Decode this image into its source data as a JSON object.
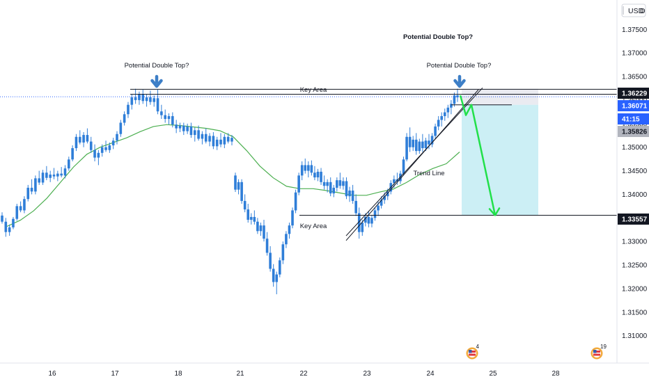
{
  "chart_data": {
    "type": "candlestick",
    "currency": "USD",
    "currency_menu": "D",
    "y_ticks": [
      "1.37500",
      "1.37000",
      "1.36500",
      "1.36000",
      "1.35500",
      "1.35000",
      "1.34500",
      "1.34000",
      "1.33500",
      "1.33000",
      "1.32500",
      "1.32000",
      "1.31500",
      "1.31000"
    ],
    "y_tick_values": [
      1.375,
      1.37,
      1.365,
      1.36,
      1.355,
      1.35,
      1.345,
      1.34,
      1.335,
      1.33,
      1.325,
      1.32,
      1.315,
      1.31
    ],
    "ylim": [
      1.3045,
      1.3805
    ],
    "x_ticks": [
      {
        "label": "16",
        "day": 16
      },
      {
        "label": "17",
        "day": 17
      },
      {
        "label": "18",
        "day": 18
      },
      {
        "label": "21",
        "day": 21
      },
      {
        "label": "22",
        "day": 22
      },
      {
        "label": "23",
        "day": 23
      },
      {
        "label": "24",
        "day": 24
      },
      {
        "label": "25",
        "day": 25
      },
      {
        "label": "28",
        "day": 28
      }
    ],
    "price_tags": [
      {
        "label": "1.36229",
        "value": 1.36229,
        "bg": "#131722",
        "fg": "#ffffff"
      },
      {
        "label": "1.36071",
        "value": 1.36071,
        "bg": "#2962ff",
        "fg": "#ffffff"
      },
      {
        "label": "41:15",
        "value": 1.3588,
        "bg": "#2962ff",
        "fg": "#ffffff"
      },
      {
        "label": "1.35826",
        "value": 1.35826,
        "bg": "#b2b5be",
        "fg": "#131722"
      },
      {
        "label": "1.33557",
        "value": 1.33557,
        "bg": "#131722",
        "fg": "#ffffff"
      }
    ],
    "current_price": 1.36071,
    "key_levels": [
      1.36229,
      1.36125,
      1.33557
    ],
    "annotations": {
      "double_top_left": "Potential Double Top?",
      "double_top_right": "Potential Double Top?",
      "double_top_top": "Potential Double Top?",
      "key_area_upper": "Key Area",
      "key_area_lower": "Key Area",
      "trend_line": "Trend Line"
    },
    "candles_start_day": 15.55,
    "candle_step_days": 0.0417,
    "candles": [
      [
        1.3355,
        1.3362,
        1.3338,
        1.3342
      ],
      [
        1.3342,
        1.335,
        1.331,
        1.332
      ],
      [
        1.332,
        1.3336,
        1.3312,
        1.333
      ],
      [
        1.333,
        1.3352,
        1.3326,
        1.3348
      ],
      [
        1.3348,
        1.338,
        1.3344,
        1.3375
      ],
      [
        1.3375,
        1.3385,
        1.3362,
        1.3366
      ],
      [
        1.3366,
        1.3396,
        1.336,
        1.339
      ],
      [
        1.339,
        1.342,
        1.3385,
        1.3414
      ],
      [
        1.3414,
        1.3432,
        1.34,
        1.3406
      ],
      [
        1.3406,
        1.344,
        1.34,
        1.3434
      ],
      [
        1.3434,
        1.345,
        1.342,
        1.3425
      ],
      [
        1.3425,
        1.3452,
        1.342,
        1.3446
      ],
      [
        1.3446,
        1.346,
        1.343,
        1.3435
      ],
      [
        1.3435,
        1.345,
        1.3426,
        1.3442
      ],
      [
        1.3442,
        1.3456,
        1.3432,
        1.3438
      ],
      [
        1.3438,
        1.345,
        1.3428,
        1.3444
      ],
      [
        1.3444,
        1.3458,
        1.3436,
        1.344
      ],
      [
        1.344,
        1.3462,
        1.3434,
        1.3455
      ],
      [
        1.3455,
        1.348,
        1.345,
        1.3474
      ],
      [
        1.3474,
        1.3504,
        1.347,
        1.3498
      ],
      [
        1.3498,
        1.3528,
        1.3492,
        1.3522
      ],
      [
        1.3522,
        1.3536,
        1.3506,
        1.351
      ],
      [
        1.351,
        1.3532,
        1.35,
        1.3526
      ],
      [
        1.3526,
        1.354,
        1.3508,
        1.3512
      ],
      [
        1.3512,
        1.3522,
        1.3488,
        1.3494
      ],
      [
        1.3494,
        1.3506,
        1.347,
        1.3478
      ],
      [
        1.3478,
        1.3494,
        1.3462,
        1.3488
      ],
      [
        1.3488,
        1.3506,
        1.348,
        1.35
      ],
      [
        1.35,
        1.3514,
        1.349,
        1.3494
      ],
      [
        1.3494,
        1.351,
        1.3488,
        1.3504
      ],
      [
        1.3504,
        1.352,
        1.3496,
        1.3514
      ],
      [
        1.3514,
        1.3534,
        1.3506,
        1.3528
      ],
      [
        1.3528,
        1.3558,
        1.3522,
        1.3552
      ],
      [
        1.3552,
        1.3576,
        1.3546,
        1.357
      ],
      [
        1.357,
        1.3596,
        1.3562,
        1.359
      ],
      [
        1.359,
        1.3612,
        1.358,
        1.3606
      ],
      [
        1.3606,
        1.3624,
        1.3592,
        1.36
      ],
      [
        1.36,
        1.3618,
        1.359,
        1.3612
      ],
      [
        1.3612,
        1.3622,
        1.3592,
        1.3598
      ],
      [
        1.3598,
        1.3612,
        1.3586,
        1.3606
      ],
      [
        1.3606,
        1.362,
        1.359,
        1.3596
      ],
      [
        1.3596,
        1.361,
        1.3586,
        1.3604
      ],
      [
        1.3604,
        1.3622,
        1.357,
        1.3576
      ],
      [
        1.3576,
        1.359,
        1.356,
        1.3568
      ],
      [
        1.3568,
        1.358,
        1.3552,
        1.356
      ],
      [
        1.356,
        1.3572,
        1.3548,
        1.3566
      ],
      [
        1.3566,
        1.3574,
        1.3542,
        1.3548
      ],
      [
        1.3548,
        1.3558,
        1.353,
        1.354
      ],
      [
        1.354,
        1.3552,
        1.3532,
        1.3546
      ],
      [
        1.3546,
        1.3552,
        1.3526,
        1.3534
      ],
      [
        1.3534,
        1.355,
        1.3528,
        1.3544
      ],
      [
        1.3544,
        1.3552,
        1.352,
        1.3526
      ],
      [
        1.3526,
        1.3542,
        1.3512,
        1.3536
      ],
      [
        1.3536,
        1.3546,
        1.3514,
        1.3518
      ],
      [
        1.3518,
        1.3534,
        1.3506,
        1.3528
      ],
      [
        1.3528,
        1.354,
        1.3508,
        1.3512
      ],
      [
        1.3512,
        1.353,
        1.3502,
        1.3524
      ],
      [
        1.3524,
        1.3532,
        1.3496,
        1.3502
      ],
      [
        1.3502,
        1.3522,
        1.3494,
        1.3516
      ],
      [
        1.3516,
        1.353,
        1.35,
        1.3506
      ],
      [
        1.3506,
        1.3528,
        1.3498,
        1.3522
      ],
      [
        1.3522,
        1.353,
        1.3508,
        1.3512
      ],
      [
        1.3512,
        1.3526,
        1.3504,
        1.352
      ],
      [
        1.344,
        1.3446,
        1.3405,
        1.341
      ],
      [
        1.341,
        1.3432,
        1.34,
        1.3426
      ],
      [
        1.3426,
        1.3432,
        1.338,
        1.3386
      ],
      [
        1.3386,
        1.34,
        1.3362,
        1.3368
      ],
      [
        1.3368,
        1.338,
        1.334,
        1.3346
      ],
      [
        1.3346,
        1.336,
        1.3336,
        1.3352
      ],
      [
        1.3352,
        1.3366,
        1.3336,
        1.3342
      ],
      [
        1.3342,
        1.335,
        1.3316,
        1.3322
      ],
      [
        1.3322,
        1.334,
        1.3312,
        1.3334
      ],
      [
        1.3334,
        1.3346,
        1.33,
        1.3306
      ],
      [
        1.3306,
        1.332,
        1.327,
        1.3276
      ],
      [
        1.3276,
        1.329,
        1.3236,
        1.3242
      ],
      [
        1.3242,
        1.3252,
        1.3204,
        1.3214
      ],
      [
        1.3214,
        1.3236,
        1.3188,
        1.323
      ],
      [
        1.323,
        1.3266,
        1.3224,
        1.326
      ],
      [
        1.326,
        1.33,
        1.3252,
        1.3294
      ],
      [
        1.3294,
        1.3322,
        1.3286,
        1.3316
      ],
      [
        1.3316,
        1.334,
        1.3306,
        1.3334
      ],
      [
        1.3334,
        1.3372,
        1.3328,
        1.3366
      ],
      [
        1.3366,
        1.341,
        1.336,
        1.3404
      ],
      [
        1.3404,
        1.3446,
        1.3398,
        1.344
      ],
      [
        1.344,
        1.347,
        1.343,
        1.3462
      ],
      [
        1.3462,
        1.3476,
        1.3444,
        1.345
      ],
      [
        1.345,
        1.347,
        1.3436,
        1.3462
      ],
      [
        1.3462,
        1.3472,
        1.344,
        1.3446
      ],
      [
        1.3446,
        1.346,
        1.343,
        1.3436
      ],
      [
        1.3436,
        1.3454,
        1.3428,
        1.3448
      ],
      [
        1.3448,
        1.3456,
        1.342,
        1.3426
      ],
      [
        1.3426,
        1.344,
        1.341,
        1.3418
      ],
      [
        1.3418,
        1.3432,
        1.3404,
        1.3426
      ],
      [
        1.3426,
        1.3436,
        1.3396,
        1.3402
      ],
      [
        1.3402,
        1.342,
        1.3394,
        1.3414
      ],
      [
        1.3414,
        1.3436,
        1.3406,
        1.343
      ],
      [
        1.343,
        1.3446,
        1.3412,
        1.3418
      ],
      [
        1.3418,
        1.3436,
        1.341,
        1.3428
      ],
      [
        1.3428,
        1.3436,
        1.339,
        1.3396
      ],
      [
        1.3396,
        1.3416,
        1.3384,
        1.3408
      ],
      [
        1.3408,
        1.342,
        1.338,
        1.3386
      ],
      [
        1.3386,
        1.34,
        1.3354,
        1.336
      ],
      [
        1.336,
        1.3372,
        1.3306,
        1.332
      ],
      [
        1.332,
        1.3346,
        1.3312,
        1.334
      ],
      [
        1.334,
        1.336,
        1.3332,
        1.3352
      ],
      [
        1.3352,
        1.3364,
        1.333,
        1.3338
      ],
      [
        1.3338,
        1.3356,
        1.333,
        1.335
      ],
      [
        1.335,
        1.3372,
        1.3344,
        1.3366
      ],
      [
        1.3366,
        1.3384,
        1.3354,
        1.3376
      ],
      [
        1.3376,
        1.3396,
        1.337,
        1.3388
      ],
      [
        1.3388,
        1.3404,
        1.338,
        1.3396
      ],
      [
        1.3396,
        1.3412,
        1.3388,
        1.3406
      ],
      [
        1.3406,
        1.343,
        1.34,
        1.3424
      ],
      [
        1.3424,
        1.344,
        1.3414,
        1.3432
      ],
      [
        1.3432,
        1.3446,
        1.342,
        1.3428
      ],
      [
        1.3428,
        1.345,
        1.3422,
        1.3444
      ],
      [
        1.3444,
        1.348,
        1.344,
        1.3474
      ],
      [
        1.3474,
        1.353,
        1.347,
        1.3522
      ],
      [
        1.3522,
        1.3542,
        1.349,
        1.35
      ],
      [
        1.35,
        1.3524,
        1.3492,
        1.3516
      ],
      [
        1.3516,
        1.353,
        1.3484,
        1.3492
      ],
      [
        1.3492,
        1.3518,
        1.3486,
        1.3512
      ],
      [
        1.3512,
        1.3528,
        1.349,
        1.3498
      ],
      [
        1.3498,
        1.352,
        1.3492,
        1.3514
      ],
      [
        1.3514,
        1.3528,
        1.3496,
        1.3506
      ],
      [
        1.3506,
        1.353,
        1.35,
        1.3524
      ],
      [
        1.3524,
        1.355,
        1.3518,
        1.3544
      ],
      [
        1.3544,
        1.3566,
        1.3536,
        1.3558
      ],
      [
        1.3558,
        1.3574,
        1.3544,
        1.3566
      ],
      [
        1.3566,
        1.3582,
        1.3556,
        1.3574
      ],
      [
        1.3574,
        1.359,
        1.3562,
        1.3584
      ],
      [
        1.3584,
        1.36,
        1.357,
        1.3592
      ],
      [
        1.3592,
        1.3616,
        1.3586,
        1.361
      ],
      [
        1.361,
        1.3624,
        1.3596,
        1.3606
      ]
    ],
    "ma_values": [
      1.3332,
      1.3345,
      1.3365,
      1.3392,
      1.3425,
      1.3458,
      1.3485,
      1.35,
      1.351,
      1.352,
      1.3533,
      1.3544,
      1.3548,
      1.3546,
      1.3543,
      1.354,
      1.3535,
      1.3522,
      1.3493,
      1.346,
      1.3435,
      1.3417,
      1.3412,
      1.3412,
      1.3408,
      1.3403,
      1.3398,
      1.3398,
      1.3405,
      1.3411,
      1.3425,
      1.3442,
      1.3455,
      1.3465,
      1.349
    ]
  }
}
